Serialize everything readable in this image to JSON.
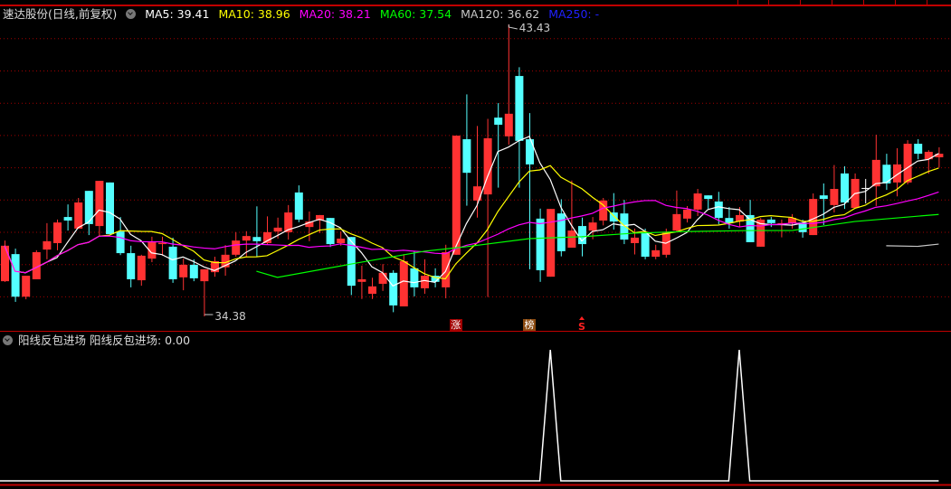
{
  "header": {
    "stock_title": "速达股份(日线,前复权)",
    "dropdown_icon": "chevron-down-circle-icon",
    "ma": [
      {
        "label": "MA5: 39.41",
        "color": "#ffffff"
      },
      {
        "label": "MA10: 38.96",
        "color": "#ffff00"
      },
      {
        "label": "MA20: 38.21",
        "color": "#ff00ff"
      },
      {
        "label": "MA60: 37.54",
        "color": "#00ff00"
      },
      {
        "label": "MA120: 36.62",
        "color": "#c8c8c8"
      },
      {
        "label": "MA250: -",
        "color": "#0000ff"
      }
    ]
  },
  "indicator": {
    "name": "阳线反包进场",
    "value_label": "阳线反包进场: 0.00",
    "dropdown_icon": "chevron-down-circle-icon"
  },
  "annotations": {
    "high_label": "43.43",
    "low_label": "34.38",
    "markers": [
      {
        "text": "涨",
        "index": 43,
        "bg": "#a00000",
        "color": "#ffffff"
      },
      {
        "text": "榜",
        "index": 50,
        "bg": "#8b4a10",
        "color": "#ffffff"
      },
      {
        "text": "S",
        "index": 55,
        "bg": "",
        "color": "#ff2020"
      }
    ]
  },
  "colors": {
    "up": "#ff3232",
    "down": "#54ffff",
    "grid": "#a00000",
    "separator": "#c00000",
    "background": "#000000"
  },
  "chart_data": [
    {
      "type": "candlestick",
      "ylim": [
        34.38,
        43.43
      ],
      "gridlines": [
        35,
        36,
        37,
        38,
        39,
        40,
        41,
        42,
        43
      ],
      "grid": true,
      "ohlc_fields": [
        "open",
        "high",
        "low",
        "close"
      ],
      "candles": [
        [
          35.47,
          36.73,
          35.45,
          36.57
        ],
        [
          36.31,
          36.48,
          34.83,
          34.99
        ],
        [
          34.99,
          35.64,
          34.91,
          35.64
        ],
        [
          35.53,
          36.43,
          35.53,
          36.37
        ],
        [
          36.45,
          37.27,
          36.15,
          36.71
        ],
        [
          36.65,
          37.38,
          36.43,
          37.29
        ],
        [
          37.46,
          37.85,
          37.04,
          37.35
        ],
        [
          37.1,
          38.05,
          37.1,
          37.91
        ],
        [
          38.27,
          38.27,
          36.9,
          37.24
        ],
        [
          37.18,
          38.58,
          36.85,
          38.58
        ],
        [
          38.53,
          38.53,
          36.93,
          36.93
        ],
        [
          37.01,
          37.46,
          36.28,
          36.34
        ],
        [
          36.34,
          36.57,
          35.28,
          35.53
        ],
        [
          35.5,
          36.29,
          35.33,
          36.26
        ],
        [
          36.17,
          36.85,
          36.06,
          36.68
        ],
        [
          36.62,
          36.85,
          36.26,
          36.66
        ],
        [
          36.54,
          36.82,
          35.42,
          35.53
        ],
        [
          35.59,
          36.17,
          35.19,
          35.98
        ],
        [
          35.98,
          36.15,
          35.47,
          35.56
        ],
        [
          35.47,
          35.84,
          34.38,
          35.84
        ],
        [
          35.75,
          36.23,
          35.61,
          36.09
        ],
        [
          35.9,
          36.59,
          35.64,
          36.29
        ],
        [
          36.29,
          36.99,
          36.23,
          36.73
        ],
        [
          36.73,
          37.02,
          36.23,
          36.87
        ],
        [
          36.84,
          37.79,
          36.23,
          36.71
        ],
        [
          36.65,
          37.48,
          36.6,
          36.99
        ],
        [
          37.01,
          37.44,
          36.79,
          37.13
        ],
        [
          36.99,
          37.83,
          36.76,
          37.6
        ],
        [
          38.22,
          38.44,
          37.3,
          37.38
        ],
        [
          37.15,
          37.63,
          36.71,
          37.32
        ],
        [
          37.35,
          37.52,
          36.97,
          37.52
        ],
        [
          37.43,
          37.43,
          36.53,
          36.62
        ],
        [
          36.65,
          37.01,
          36.57,
          36.79
        ],
        [
          36.84,
          36.84,
          35.04,
          35.33
        ],
        [
          35.45,
          35.95,
          34.92,
          35.53
        ],
        [
          35.08,
          35.58,
          34.92,
          35.31
        ],
        [
          35.39,
          36.0,
          35.17,
          35.73
        ],
        [
          35.73,
          35.81,
          34.51,
          34.72
        ],
        [
          34.69,
          36.31,
          34.69,
          36.09
        ],
        [
          35.87,
          36.4,
          35.0,
          35.28
        ],
        [
          35.25,
          36.15,
          35.08,
          35.64
        ],
        [
          35.64,
          35.87,
          35.28,
          35.45
        ],
        [
          35.28,
          36.6,
          34.94,
          36.37
        ],
        [
          36.29,
          39.98,
          36.29,
          39.98
        ],
        [
          39.87,
          41.26,
          37.81,
          38.83
        ],
        [
          37.97,
          40.28,
          37.44,
          38.41
        ],
        [
          38.16,
          40.5,
          34.98,
          39.9
        ],
        [
          40.54,
          40.99,
          38.37,
          40.32
        ],
        [
          39.96,
          43.43,
          39.7,
          40.66
        ],
        [
          41.83,
          42.1,
          38.37,
          39.82
        ],
        [
          39.87,
          40.68,
          35.84,
          39.09
        ],
        [
          37.41,
          37.72,
          35.45,
          35.81
        ],
        [
          35.61,
          37.71,
          35.61,
          37.71
        ],
        [
          37.57,
          38.01,
          36.24,
          36.4
        ],
        [
          36.51,
          38.59,
          36.51,
          37.04
        ],
        [
          37.18,
          37.44,
          36.24,
          36.62
        ],
        [
          37.04,
          37.46,
          36.77,
          37.29
        ],
        [
          37.35,
          38.05,
          37.2,
          37.97
        ],
        [
          37.6,
          38.2,
          37.07,
          37.32
        ],
        [
          37.57,
          37.99,
          36.62,
          36.76
        ],
        [
          36.65,
          37.1,
          36.3,
          36.82
        ],
        [
          36.99,
          37.1,
          36.15,
          36.23
        ],
        [
          36.23,
          36.6,
          36.15,
          36.43
        ],
        [
          36.29,
          37.1,
          36.2,
          36.99
        ],
        [
          37.04,
          38.28,
          37.0,
          37.55
        ],
        [
          37.41,
          37.8,
          37.29,
          37.69
        ],
        [
          37.69,
          38.33,
          37.49,
          38.19
        ],
        [
          38.13,
          38.13,
          37.71,
          38.02
        ],
        [
          37.94,
          38.24,
          37.24,
          37.43
        ],
        [
          37.43,
          37.77,
          37.1,
          37.27
        ],
        [
          37.32,
          37.77,
          37.15,
          37.52
        ],
        [
          37.52,
          37.99,
          36.68,
          36.68
        ],
        [
          36.54,
          37.43,
          36.54,
          37.38
        ],
        [
          37.38,
          37.46,
          37.15,
          37.27
        ],
        [
          37.21,
          37.38,
          36.83,
          37.27
        ],
        [
          37.27,
          37.55,
          37.1,
          37.43
        ],
        [
          37.29,
          37.38,
          36.82,
          36.99
        ],
        [
          36.9,
          38.19,
          36.9,
          38.02
        ],
        [
          38.13,
          38.5,
          37.21,
          38.02
        ],
        [
          37.83,
          39.07,
          37.6,
          38.33
        ],
        [
          38.81,
          39.03,
          37.71,
          37.91
        ],
        [
          37.74,
          38.81,
          37.74,
          38.64
        ],
        [
          38.36,
          38.64,
          37.88,
          38.36
        ],
        [
          38.41,
          40.01,
          37.8,
          39.23
        ],
        [
          39.08,
          39.42,
          38.3,
          38.5
        ],
        [
          38.53,
          39.59,
          38.1,
          39.09
        ],
        [
          38.53,
          39.84,
          38.47,
          39.73
        ],
        [
          39.73,
          39.87,
          39.25,
          39.42
        ],
        [
          39.25,
          39.53,
          38.8,
          39.48
        ],
        [
          39.31,
          39.62,
          38.99,
          39.42
        ]
      ],
      "moving_averages": [
        {
          "name": "MA5",
          "period": 5,
          "color": "#ffffff"
        },
        {
          "name": "MA10",
          "period": 10,
          "color": "#ffff00"
        },
        {
          "name": "MA20",
          "period": 20,
          "color": "#ff00ff"
        },
        {
          "name": "MA60",
          "color": "#00ff00",
          "points": [
            [
              24,
              35.78
            ],
            [
              26,
              35.59
            ],
            [
              34,
              36.06
            ],
            [
              40,
              36.4
            ],
            [
              44,
              36.54
            ],
            [
              50,
              36.79
            ],
            [
              55,
              36.85
            ],
            [
              60,
              36.96
            ],
            [
              65,
              37.01
            ],
            [
              71,
              37.04
            ],
            [
              75,
              37.04
            ],
            [
              81,
              37.32
            ],
            [
              89,
              37.54
            ]
          ]
        },
        {
          "name": "MA120",
          "color": "#c8c8c8",
          "points": [
            [
              84,
              36.57
            ],
            [
              87,
              36.55
            ],
            [
              89,
              36.62
            ]
          ]
        }
      ]
    },
    {
      "type": "line",
      "title": "阳线反包进场",
      "ylim": [
        0,
        1
      ],
      "signal_indices": [
        52,
        70
      ],
      "color": "#ffffff"
    }
  ]
}
